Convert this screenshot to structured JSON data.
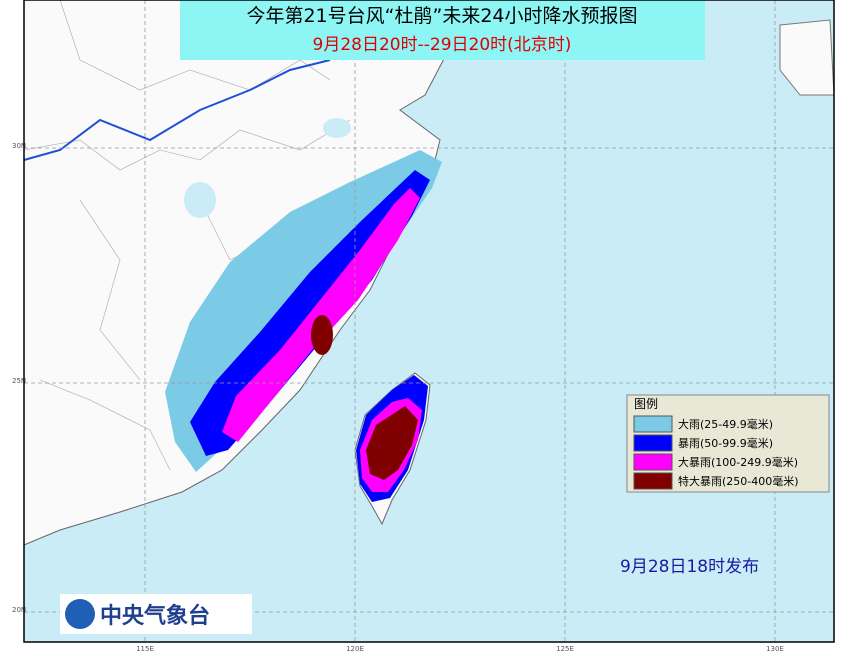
{
  "title": "今年第21号台风“杜鹃”未来24小时降水预报图",
  "subtitle": "9月28日20时--29日20时(北京时)",
  "legend": {
    "title": "图例",
    "items": [
      {
        "label": "大雨(25-49.9毫米)",
        "color": "#7ccbe6"
      },
      {
        "label": "暴雨(50-99.9毫米)",
        "color": "#0000ff"
      },
      {
        "label": "大暴雨(100-249.9毫米)",
        "color": "#ff00ff"
      },
      {
        "label": "特大暴雨(250-400毫米)",
        "color": "#800000"
      }
    ]
  },
  "release": "9月28日18时发布",
  "agency": "中央气象台",
  "lat_labels": [
    "30N",
    "25N",
    "20N"
  ],
  "lon_labels": [
    "115E",
    "120E",
    "125E",
    "130E"
  ]
}
